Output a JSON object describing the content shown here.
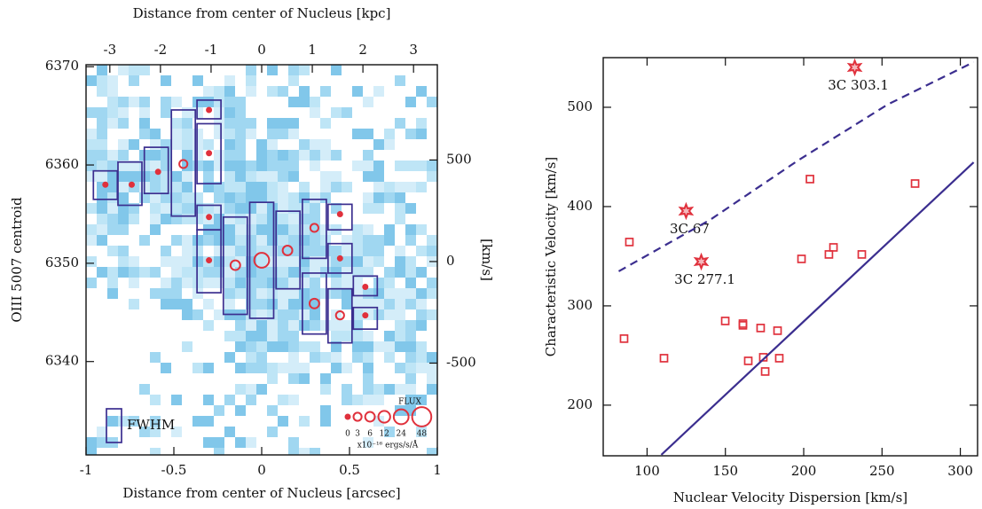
{
  "chart_data": [
    {
      "type": "bubble",
      "x_label_top": "Distance from center of Nucleus [kpc]",
      "x_label": "Distance from center of Nucleus [arcsec]",
      "y_label": "OIII 5007 centroid",
      "y2_label": "[km/s]",
      "xlim": [
        -1,
        1
      ],
      "xticks": [
        -1,
        -0.5,
        0,
        0.5,
        1
      ],
      "x2lim": [
        -3.47,
        3.47
      ],
      "x2ticks": [
        -3,
        -2,
        -1,
        0,
        1,
        2,
        3
      ],
      "ylim": [
        6330.5,
        6370.2
      ],
      "yticks": [
        6340,
        6350,
        6360,
        6370
      ],
      "y2lim": [
        -952,
        969
      ],
      "y2ticks": [
        -500,
        0,
        500
      ],
      "box_color": "#3b2e8f",
      "point_color": "#e0313c",
      "boxes": {
        "x": [
          -0.89,
          -0.75,
          -0.6,
          -0.446,
          -0.3,
          -0.3,
          -0.3,
          -0.3,
          -0.15,
          0,
          0.15,
          0.3,
          0.3,
          0.446,
          0.446,
          0.446,
          0.59,
          0.59
        ],
        "low": [
          6356.5,
          6355.9,
          6357.1,
          6354.8,
          6364.7,
          6358.1,
          6353.4,
          6347.0,
          6344.8,
          6344.4,
          6347.4,
          6350.5,
          6342.8,
          6353.4,
          6349.0,
          6341.9,
          6346.7,
          6343.3
        ],
        "high": [
          6359.4,
          6360.3,
          6361.8,
          6365.6,
          6366.6,
          6364.2,
          6355.9,
          6353.4,
          6354.7,
          6356.2,
          6355.3,
          6356.5,
          6349.0,
          6356.0,
          6352.0,
          6347.4,
          6348.7,
          6345.5
        ]
      },
      "points": {
        "x": [
          -0.89,
          -0.74,
          -0.59,
          -0.446,
          -0.3,
          -0.3,
          -0.3,
          -0.3,
          -0.15,
          0,
          0.147,
          0.3,
          0.3,
          0.446,
          0.446,
          0.446,
          0.59,
          0.59
        ],
        "y": [
          6358.0,
          6358.0,
          6359.3,
          6360.1,
          6365.6,
          6361.2,
          6354.7,
          6350.3,
          6349.8,
          6350.3,
          6351.3,
          6353.6,
          6345.9,
          6355.0,
          6350.5,
          6344.7,
          6347.6,
          6344.7
        ],
        "flux": [
          0,
          0,
          0,
          3,
          0,
          0,
          0,
          0,
          6,
          24,
          6,
          3,
          6,
          0,
          0,
          3,
          0,
          0
        ]
      },
      "size_legend": {
        "title": "FLUX",
        "values": [
          0,
          3,
          6,
          12,
          24,
          48
        ],
        "unit": "x10⁻¹⁶ ergs/s/Å"
      },
      "box_legend": "FWHM"
    },
    {
      "type": "scatter",
      "x_label": "Nuclear Velocity Dispersion [km/s]",
      "y_label": "Characteristic Velocity [km/s]",
      "xlim": [
        72,
        311
      ],
      "xticks": [
        100,
        150,
        200,
        250,
        300
      ],
      "ylim": [
        149,
        550
      ],
      "yticks": [
        200,
        300,
        400,
        500
      ],
      "series": [
        {
          "kind": "square",
          "color": "#e0313c",
          "x": [
            88.7,
            85.3,
            110.8,
            149.9,
            161.2,
            161.2,
            172.5,
            183.3,
            164.6,
            174.2,
            184.4,
            175.4,
            204.0,
            198.6,
            216.1,
            219.0,
            237.1,
            271.1
          ],
          "values": [
            364.3,
            267.0,
            247.3,
            284.8,
            282.1,
            280.4,
            277.7,
            275.0,
            244.6,
            248.2,
            247.3,
            233.9,
            427.7,
            347.3,
            351.8,
            358.9,
            351.8,
            423.2
          ]
        },
        {
          "kind": "star",
          "color": "#e0313c",
          "x": [
            232.6,
            124.9,
            134.6
          ],
          "values": [
            540.2,
            395.5,
            344.6
          ],
          "labels": [
            "3C 303.1",
            "3C 67",
            "3C 277.1"
          ]
        },
        {
          "kind": "solid",
          "color": "#3b2e8f",
          "x": [
            109.1,
            308.5
          ],
          "values": [
            150,
            444.6
          ]
        },
        {
          "kind": "dashed",
          "color": "#3b2e8f",
          "x": [
            81.9,
            140.2,
            196.9,
            253.5,
            308.5
          ],
          "values": [
            334.8,
            386.6,
            447.0,
            502.7,
            545.5
          ]
        }
      ]
    }
  ]
}
